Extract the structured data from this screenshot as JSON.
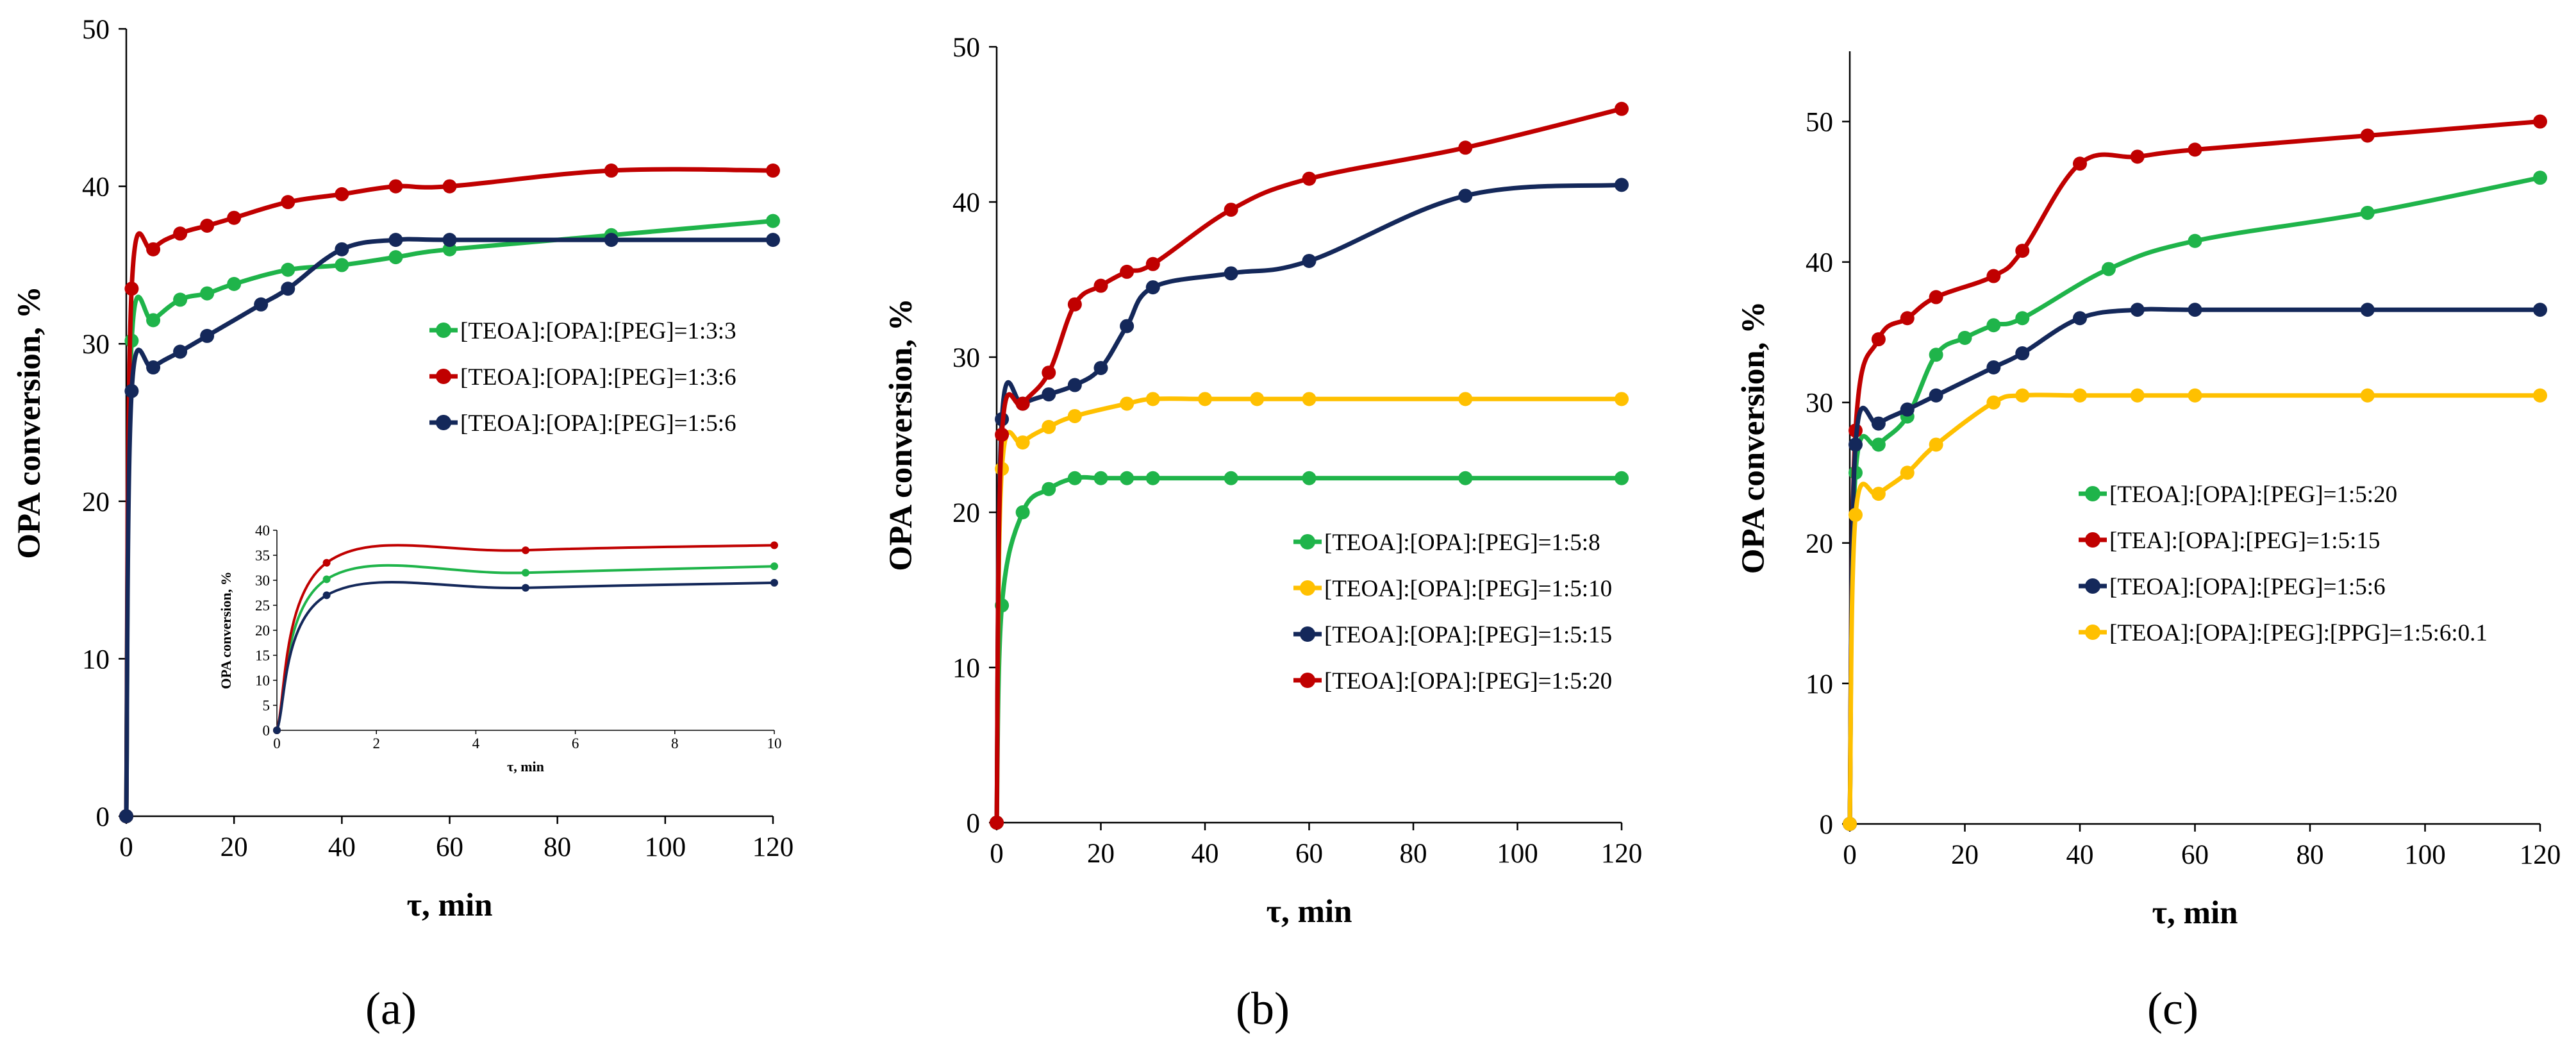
{
  "chart_data": [
    {
      "id": "a",
      "type": "line",
      "panel_label": "(a)",
      "xlabel": "τ, min",
      "ylabel": "OPA conversion, %",
      "xlim": [
        0,
        120
      ],
      "ylim": [
        0,
        50
      ],
      "xticks": [
        0,
        20,
        40,
        60,
        80,
        100,
        120
      ],
      "yticks": [
        0,
        10,
        20,
        30,
        40,
        50
      ],
      "legend_position": "center-right",
      "series": [
        {
          "name": "[TEOA]:[OPA]:[PEG]=1:3:3",
          "color": "#1fb44a",
          "x": [
            0,
            1,
            5,
            10,
            15,
            20,
            30,
            40,
            50,
            60,
            90,
            120
          ],
          "y": [
            0,
            30.2,
            31.5,
            32.8,
            33.2,
            33.8,
            34.7,
            35.0,
            35.5,
            36.0,
            36.9,
            37.8
          ]
        },
        {
          "name": "[TEOA]:[OPA]:[PEG]=1:3:6",
          "color": "#c00000",
          "x": [
            0,
            1,
            5,
            10,
            15,
            20,
            30,
            40,
            50,
            60,
            90,
            120
          ],
          "y": [
            0,
            33.5,
            36.0,
            37.0,
            37.5,
            38.0,
            39.0,
            39.5,
            40.0,
            40.0,
            41.0,
            41.0
          ]
        },
        {
          "name": "[TEOA]:[OPA]:[PEG]=1:5:6",
          "color": "#14285a",
          "x": [
            0,
            1,
            5,
            10,
            15,
            25,
            30,
            40,
            50,
            60,
            90,
            120
          ],
          "y": [
            0,
            27.0,
            28.5,
            29.5,
            30.5,
            32.5,
            33.5,
            36.0,
            36.6,
            36.6,
            36.6,
            36.6
          ]
        }
      ],
      "inset": {
        "xlabel": "τ, min",
        "ylabel": "OPA conversion, %",
        "xlim": [
          0,
          10
        ],
        "ylim": [
          0,
          40
        ],
        "xticks": [
          0,
          2,
          4,
          6,
          8,
          10
        ],
        "yticks": [
          0,
          5,
          10,
          15,
          20,
          25,
          30,
          35,
          40
        ],
        "series": [
          {
            "name": "[TEOA]:[OPA]:[PEG]=1:3:3",
            "color": "#1fb44a",
            "x": [
              0,
              1,
              5,
              10
            ],
            "y": [
              0,
              30.2,
              31.5,
              32.8
            ]
          },
          {
            "name": "[TEOA]:[OPA]:[PEG]=1:3:6",
            "color": "#c00000",
            "x": [
              0,
              1,
              5,
              10
            ],
            "y": [
              0,
              33.5,
              36.0,
              37.0
            ]
          },
          {
            "name": "[TEOA]:[OPA]:[PEG]=1:5:6",
            "color": "#14285a",
            "x": [
              0,
              1,
              5,
              10
            ],
            "y": [
              0,
              27.0,
              28.5,
              29.5
            ]
          }
        ]
      }
    },
    {
      "id": "b",
      "type": "line",
      "panel_label": "(b)",
      "xlabel": "τ, min",
      "ylabel": "OPA conversion, %",
      "xlim": [
        0,
        120
      ],
      "ylim": [
        0,
        50
      ],
      "xticks": [
        0,
        20,
        40,
        60,
        80,
        100,
        120
      ],
      "yticks": [
        0,
        10,
        20,
        30,
        40,
        50
      ],
      "legend_position": "center-right",
      "series": [
        {
          "name": "[TEOA]:[OPA]:[PEG]=1:5:8",
          "color": "#1fb44a",
          "x": [
            0,
            1,
            5,
            10,
            15,
            20,
            25,
            30,
            45,
            60,
            90,
            120
          ],
          "y": [
            0,
            14.0,
            20.0,
            21.5,
            22.2,
            22.2,
            22.2,
            22.2,
            22.2,
            22.2,
            22.2,
            22.2
          ]
        },
        {
          "name": "[TEOA]:[OPA]:[PEG]=1:5:10",
          "color": "#ffc000",
          "x": [
            0,
            1,
            5,
            10,
            15,
            25,
            30,
            40,
            50,
            60,
            90,
            120
          ],
          "y": [
            0,
            22.8,
            24.5,
            25.5,
            26.2,
            27.0,
            27.3,
            27.3,
            27.3,
            27.3,
            27.3,
            27.3
          ]
        },
        {
          "name": "[TEOA]:[OPA]:[PEG]=1:5:15",
          "color": "#14285a",
          "x": [
            0,
            1,
            5,
            10,
            15,
            20,
            25,
            30,
            45,
            60,
            90,
            120
          ],
          "y": [
            0,
            26.0,
            27.0,
            27.6,
            28.2,
            29.3,
            32.0,
            34.5,
            35.4,
            36.2,
            40.4,
            41.1
          ]
        },
        {
          "name": "[TEOA]:[OPA]:[PEG]=1:5:20",
          "color": "#c00000",
          "x": [
            0,
            1,
            5,
            10,
            15,
            20,
            25,
            30,
            45,
            60,
            90,
            120
          ],
          "y": [
            0,
            25.0,
            27.0,
            29.0,
            33.4,
            34.6,
            35.5,
            36.0,
            39.5,
            41.5,
            43.5,
            46.0
          ]
        }
      ]
    },
    {
      "id": "c",
      "type": "line",
      "panel_label": "(c)",
      "xlabel": "τ, min",
      "ylabel": "OPA conversion, %",
      "xlim": [
        0,
        120
      ],
      "ylim": [
        0,
        55
      ],
      "xticks": [
        0,
        20,
        40,
        60,
        80,
        100,
        120
      ],
      "yticks": [
        0,
        10,
        20,
        30,
        40,
        50
      ],
      "legend_position": "center-right",
      "series": [
        {
          "name": "[TEOA]:[OPA]:[PEG]=1:5:20",
          "color": "#1fb44a",
          "x": [
            0,
            1,
            5,
            10,
            15,
            20,
            25,
            30,
            45,
            60,
            90,
            120
          ],
          "y": [
            0,
            25.0,
            27.0,
            29.0,
            33.4,
            34.6,
            35.5,
            36.0,
            39.5,
            41.5,
            43.5,
            46.0
          ]
        },
        {
          "name": "[TEA]:[OPA]:[PEG]=1:5:15",
          "color": "#c00000",
          "x": [
            0,
            1,
            5,
            10,
            15,
            25,
            30,
            40,
            50,
            60,
            90,
            120
          ],
          "y": [
            0,
            28.0,
            34.5,
            36.0,
            37.5,
            39.0,
            40.8,
            47.0,
            47.5,
            48.0,
            49.0,
            50.0
          ]
        },
        {
          "name": "[TEOA]:[OPA]:[PEG]=1:5:6",
          "color": "#14285a",
          "x": [
            0,
            1,
            5,
            10,
            15,
            25,
            30,
            40,
            50,
            60,
            90,
            120
          ],
          "y": [
            0,
            27.0,
            28.5,
            29.5,
            30.5,
            32.5,
            33.5,
            36.0,
            36.6,
            36.6,
            36.6,
            36.6
          ]
        },
        {
          "name": "[TEOA]:[OPA]:[PEG]:[PPG]=1:5:6:0.1",
          "color": "#ffc000",
          "x": [
            0,
            1,
            5,
            10,
            15,
            25,
            30,
            40,
            50,
            60,
            90,
            120
          ],
          "y": [
            0,
            22.0,
            23.5,
            25.0,
            27.0,
            30.0,
            30.5,
            30.5,
            30.5,
            30.5,
            30.5,
            30.5
          ]
        }
      ]
    }
  ]
}
